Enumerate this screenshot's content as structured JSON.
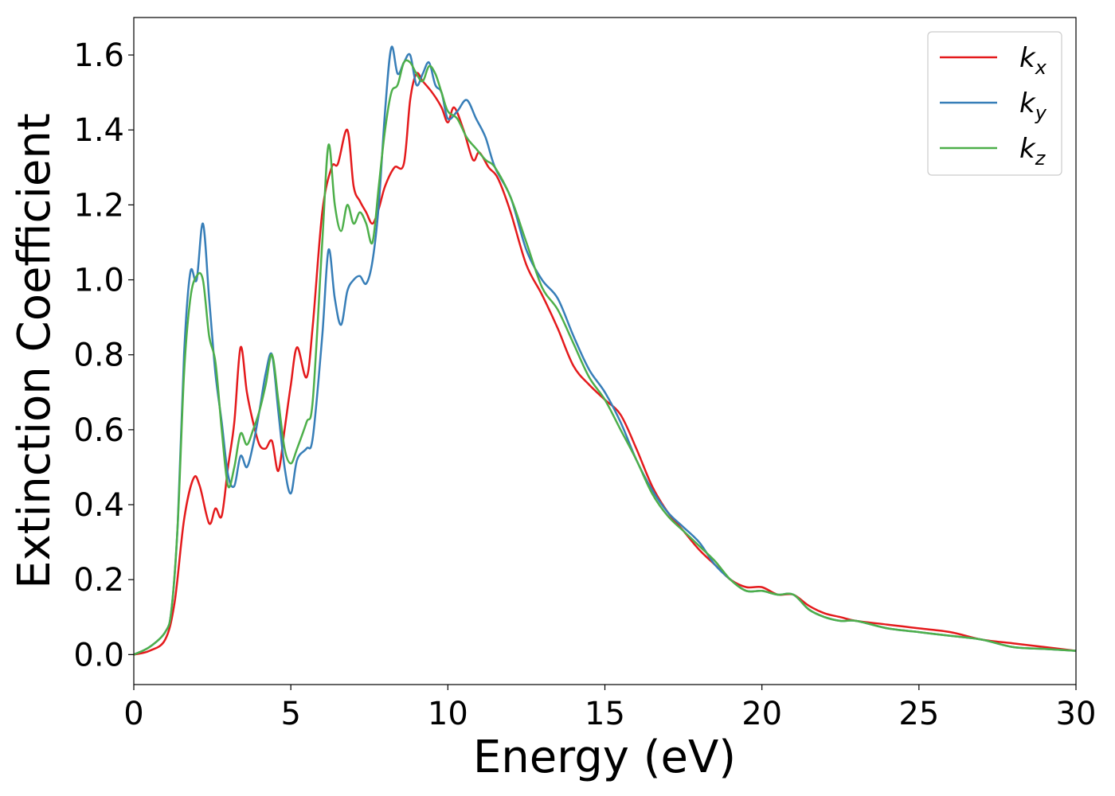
{
  "chart_data": {
    "type": "line",
    "title": "",
    "xlabel": "Energy (eV)",
    "ylabel": "Extinction Coefficient",
    "xlim": [
      0,
      30
    ],
    "ylim": [
      -0.08,
      1.7
    ],
    "xticks": [
      0,
      5,
      10,
      15,
      20,
      25,
      30
    ],
    "yticks": [
      0.0,
      0.2,
      0.4,
      0.6,
      0.8,
      1.0,
      1.2,
      1.4,
      1.6
    ],
    "xtick_labels": [
      "0",
      "5",
      "10",
      "15",
      "20",
      "25",
      "30"
    ],
    "ytick_labels": [
      "0.0",
      "0.2",
      "0.4",
      "0.6",
      "0.8",
      "1.0",
      "1.2",
      "1.4",
      "1.6"
    ],
    "grid": false,
    "legend_position": "top-right",
    "series": [
      {
        "name": "k_x",
        "label_base": "k",
        "label_sub": "x",
        "color": "#e41a1c",
        "x": [
          0,
          0.5,
          1.0,
          1.3,
          1.6,
          1.9,
          2.1,
          2.4,
          2.6,
          2.8,
          3.0,
          3.2,
          3.4,
          3.6,
          3.8,
          4.0,
          4.2,
          4.4,
          4.6,
          4.8,
          5.0,
          5.2,
          5.5,
          5.7,
          6.0,
          6.3,
          6.5,
          6.8,
          7.0,
          7.2,
          7.4,
          7.6,
          7.8,
          8.0,
          8.3,
          8.6,
          8.8,
          9.0,
          9.2,
          9.5,
          9.8,
          10.0,
          10.2,
          10.5,
          10.8,
          11.0,
          11.3,
          11.6,
          12.0,
          12.5,
          13.0,
          13.5,
          14.0,
          14.5,
          15.0,
          15.5,
          16.0,
          16.5,
          17.0,
          17.5,
          18.0,
          18.5,
          19.0,
          19.5,
          20.0,
          20.5,
          21.0,
          21.5,
          22.0,
          22.5,
          23.0,
          24.0,
          25.0,
          26.0,
          27.0,
          28.0,
          29.0,
          30.0
        ],
        "values": [
          0.0,
          0.01,
          0.04,
          0.14,
          0.36,
          0.47,
          0.45,
          0.35,
          0.39,
          0.37,
          0.5,
          0.62,
          0.82,
          0.7,
          0.62,
          0.56,
          0.55,
          0.57,
          0.49,
          0.6,
          0.72,
          0.82,
          0.74,
          0.88,
          1.18,
          1.3,
          1.31,
          1.4,
          1.25,
          1.21,
          1.18,
          1.15,
          1.19,
          1.25,
          1.3,
          1.31,
          1.48,
          1.55,
          1.53,
          1.5,
          1.46,
          1.42,
          1.46,
          1.4,
          1.32,
          1.34,
          1.3,
          1.27,
          1.18,
          1.04,
          0.96,
          0.87,
          0.77,
          0.72,
          0.68,
          0.64,
          0.55,
          0.45,
          0.38,
          0.33,
          0.28,
          0.24,
          0.2,
          0.18,
          0.18,
          0.16,
          0.16,
          0.13,
          0.11,
          0.1,
          0.09,
          0.08,
          0.07,
          0.06,
          0.04,
          0.03,
          0.02,
          0.01
        ]
      },
      {
        "name": "k_y",
        "label_base": "k",
        "label_sub": "y",
        "color": "#377eb8",
        "x": [
          0,
          0.5,
          1.0,
          1.2,
          1.4,
          1.6,
          1.8,
          2.0,
          2.2,
          2.4,
          2.6,
          2.8,
          3.0,
          3.2,
          3.4,
          3.6,
          3.8,
          4.0,
          4.2,
          4.4,
          4.6,
          4.8,
          5.0,
          5.2,
          5.5,
          5.7,
          6.0,
          6.2,
          6.4,
          6.6,
          6.8,
          7.0,
          7.2,
          7.4,
          7.6,
          7.8,
          8.0,
          8.2,
          8.4,
          8.6,
          8.8,
          9.0,
          9.2,
          9.4,
          9.6,
          9.8,
          10.0,
          10.3,
          10.6,
          10.9,
          11.2,
          11.5,
          12.0,
          12.5,
          13.0,
          13.5,
          14.0,
          14.5,
          15.0,
          15.5,
          16.0,
          16.5,
          17.0,
          17.5,
          18.0,
          18.5,
          19.0,
          19.5,
          20.0,
          20.5,
          21.0,
          21.5,
          22.0,
          22.5,
          23.0,
          24.0,
          25.0,
          26.0,
          27.0,
          28.0,
          29.0,
          30.0
        ],
        "values": [
          0.0,
          0.02,
          0.06,
          0.12,
          0.35,
          0.8,
          1.02,
          1.0,
          1.15,
          0.95,
          0.75,
          0.62,
          0.48,
          0.45,
          0.53,
          0.5,
          0.56,
          0.65,
          0.75,
          0.8,
          0.65,
          0.5,
          0.43,
          0.52,
          0.55,
          0.58,
          0.85,
          1.08,
          0.95,
          0.88,
          0.97,
          1.0,
          1.01,
          0.99,
          1.05,
          1.2,
          1.45,
          1.62,
          1.55,
          1.58,
          1.6,
          1.52,
          1.55,
          1.58,
          1.52,
          1.5,
          1.43,
          1.45,
          1.48,
          1.43,
          1.38,
          1.3,
          1.22,
          1.08,
          1.0,
          0.95,
          0.85,
          0.76,
          0.7,
          0.62,
          0.52,
          0.44,
          0.38,
          0.34,
          0.3,
          0.24,
          0.2,
          0.17,
          0.17,
          0.16,
          0.16,
          0.12,
          0.1,
          0.09,
          0.09,
          0.07,
          0.06,
          0.05,
          0.04,
          0.02,
          0.015,
          0.01
        ]
      },
      {
        "name": "k_z",
        "label_base": "k",
        "label_sub": "z",
        "color": "#4daf4a",
        "x": [
          0,
          0.5,
          1.0,
          1.2,
          1.4,
          1.6,
          1.8,
          2.0,
          2.2,
          2.4,
          2.6,
          2.8,
          3.0,
          3.2,
          3.4,
          3.6,
          3.8,
          4.0,
          4.2,
          4.4,
          4.6,
          4.8,
          5.0,
          5.2,
          5.5,
          5.7,
          6.0,
          6.2,
          6.4,
          6.6,
          6.8,
          7.0,
          7.2,
          7.4,
          7.6,
          7.8,
          8.0,
          8.2,
          8.4,
          8.6,
          8.8,
          9.0,
          9.2,
          9.4,
          9.6,
          9.8,
          10.0,
          10.3,
          10.6,
          10.9,
          11.2,
          11.5,
          12.0,
          12.5,
          13.0,
          13.5,
          14.0,
          14.5,
          15.0,
          15.5,
          16.0,
          16.5,
          17.0,
          17.5,
          18.0,
          18.5,
          19.0,
          19.5,
          20.0,
          20.5,
          21.0,
          21.5,
          22.0,
          22.5,
          23.0,
          24.0,
          25.0,
          26.0,
          27.0,
          28.0,
          29.0,
          30.0
        ],
        "values": [
          0.0,
          0.02,
          0.06,
          0.12,
          0.35,
          0.75,
          0.95,
          1.01,
          1.0,
          0.85,
          0.78,
          0.6,
          0.45,
          0.5,
          0.59,
          0.56,
          0.6,
          0.65,
          0.72,
          0.8,
          0.68,
          0.55,
          0.51,
          0.55,
          0.62,
          0.68,
          1.1,
          1.36,
          1.2,
          1.13,
          1.2,
          1.15,
          1.18,
          1.15,
          1.1,
          1.25,
          1.4,
          1.5,
          1.52,
          1.58,
          1.58,
          1.55,
          1.53,
          1.57,
          1.55,
          1.5,
          1.45,
          1.43,
          1.38,
          1.35,
          1.32,
          1.3,
          1.22,
          1.1,
          0.98,
          0.92,
          0.83,
          0.74,
          0.68,
          0.6,
          0.52,
          0.43,
          0.37,
          0.33,
          0.29,
          0.25,
          0.2,
          0.17,
          0.17,
          0.16,
          0.16,
          0.12,
          0.1,
          0.09,
          0.09,
          0.07,
          0.06,
          0.05,
          0.04,
          0.02,
          0.015,
          0.01
        ]
      }
    ]
  }
}
